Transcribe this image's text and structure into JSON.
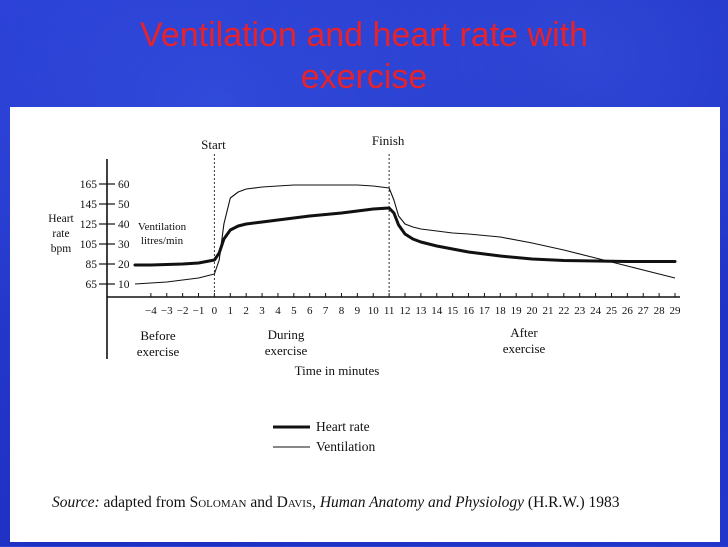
{
  "slide": {
    "title_line1": "Ventilation and heart rate with",
    "title_line2": "exercise"
  },
  "chart_data": {
    "type": "line",
    "x": [
      -5,
      -4,
      -3,
      -2,
      -1,
      0,
      0.3,
      0.6,
      1,
      1.5,
      2,
      3,
      4,
      5,
      6,
      7,
      8,
      9,
      10,
      10.5,
      11,
      11.3,
      11.6,
      12,
      12.5,
      13,
      14,
      15,
      16,
      18,
      20,
      22,
      24,
      26,
      28,
      29
    ],
    "series": [
      {
        "name": "Heart rate",
        "values": [
          84,
          84,
          84.5,
          85,
          86,
          89,
          96,
          110,
          119,
          123,
          125,
          127,
          129,
          131,
          133,
          134.5,
          136,
          138,
          140,
          140.5,
          141,
          136,
          124,
          115,
          110,
          107,
          103,
          100,
          97,
          93,
          90,
          88.5,
          88,
          87.5,
          87.5,
          87.5
        ]
      },
      {
        "name": "Ventilation",
        "values": [
          10,
          10.5,
          11,
          12,
          13,
          15,
          22,
          40,
          53,
          56,
          57.5,
          58.5,
          59,
          59.5,
          59.5,
          59.5,
          59.5,
          59.5,
          59,
          58.5,
          58,
          52,
          44,
          40,
          38.5,
          37.5,
          36.5,
          35.5,
          35,
          33.5,
          30.5,
          27,
          23,
          19,
          15,
          13
        ]
      }
    ],
    "x_ticks": [
      "−4",
      "−3",
      "−2",
      "−1",
      "0",
      "1",
      "2",
      "3",
      "4",
      "5",
      "6",
      "7",
      "8",
      "9",
      "10",
      "11",
      "12",
      "13",
      "14",
      "15",
      "16",
      "17",
      "18",
      "19",
      "20",
      "21",
      "22",
      "23",
      "24",
      "25",
      "26",
      "27",
      "28",
      "29"
    ],
    "x_tick_values": [
      -4,
      -3,
      -2,
      -1,
      0,
      1,
      2,
      3,
      4,
      5,
      6,
      7,
      8,
      9,
      10,
      11,
      12,
      13,
      14,
      15,
      16,
      17,
      18,
      19,
      20,
      21,
      22,
      23,
      24,
      25,
      26,
      27,
      28,
      29
    ],
    "xlim": [
      -5,
      29
    ],
    "xlabel": "Time in minutes",
    "heart_rate_axis": {
      "label_lines": [
        "Heart",
        "rate",
        "bpm"
      ],
      "ticks": [
        "165",
        "145",
        "125",
        "105",
        "85",
        "65"
      ],
      "tick_values": [
        165,
        145,
        125,
        105,
        85,
        65
      ],
      "range": [
        65,
        165
      ]
    },
    "ventilation_axis": {
      "label_lines": [
        "Ventilation",
        "litres/min"
      ],
      "ticks": [
        "60",
        "50",
        "40",
        "30",
        "20",
        "10"
      ],
      "tick_values": [
        60,
        50,
        40,
        30,
        20,
        10
      ],
      "range": [
        10,
        60
      ]
    },
    "markers": [
      {
        "label": "Start",
        "x": 0
      },
      {
        "label": "Finish",
        "x": 11
      }
    ],
    "phases": [
      {
        "lines": [
          "Before",
          "exercise"
        ]
      },
      {
        "lines": [
          "During",
          "exercise"
        ]
      },
      {
        "lines": [
          "After",
          "exercise"
        ]
      }
    ],
    "legend": {
      "placement": "bottom-center",
      "entries": [
        "Heart rate",
        "Ventilation"
      ]
    }
  },
  "source": {
    "label": "Source:",
    "text1": "adapted from",
    "author1": "Soloman",
    "and": "and",
    "author2": "Davis",
    "book": "Human Anatomy and Physiology",
    "publisher": "(H.R.W.) 1983"
  }
}
